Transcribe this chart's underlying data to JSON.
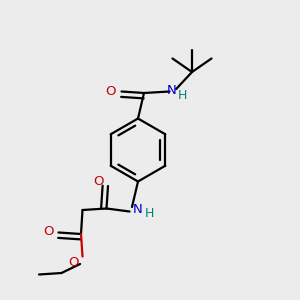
{
  "bg_color": "#ececec",
  "bond_color": "#000000",
  "oxygen_color": "#cc0000",
  "nitrogen_color": "#0000cc",
  "hydrogen_color": "#008080",
  "line_width": 1.6,
  "fig_size": [
    3.0,
    3.0
  ],
  "dpi": 100,
  "xlim": [
    0,
    1
  ],
  "ylim": [
    0,
    1
  ]
}
